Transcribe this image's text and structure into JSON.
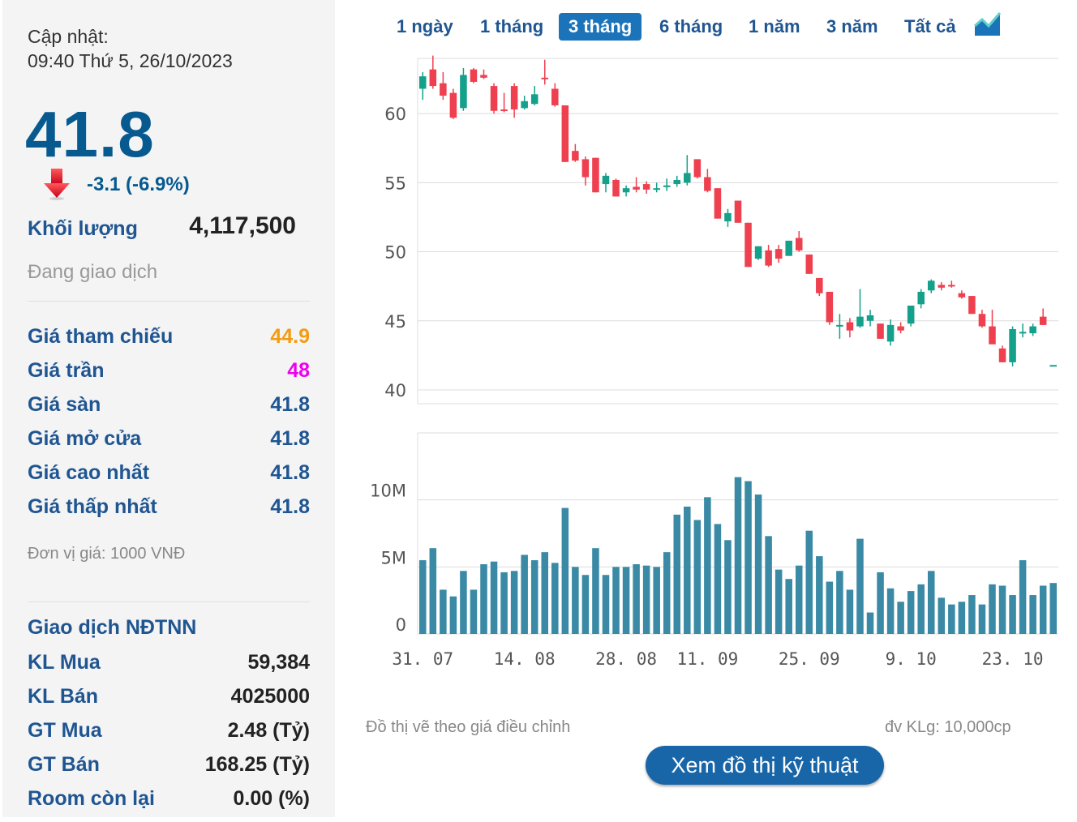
{
  "info": {
    "updated_label": "Cập nhật:",
    "updated_time": "09:40 Thứ 5, 26/10/2023",
    "price": "41.8",
    "change": "-3.1 (-6.9%)",
    "volume_label": "Khối lượng",
    "volume_value": "4,117,500",
    "status": "Đang giao dịch",
    "unit_note": "Đơn vị giá: 1000 VNĐ"
  },
  "prices": [
    {
      "label": "Giá tham chiếu",
      "value": "44.9",
      "color": "#f39c12"
    },
    {
      "label": "Giá trần",
      "value": "48",
      "color": "#ee00ee"
    },
    {
      "label": "Giá sàn",
      "value": "41.8",
      "color": "#1f5591"
    },
    {
      "label": "Giá mở cửa",
      "value": "41.8",
      "color": "#1f5591"
    },
    {
      "label": "Giá cao nhất",
      "value": "41.8",
      "color": "#1f5591"
    },
    {
      "label": "Giá thấp nhất",
      "value": "41.8",
      "color": "#1f5591"
    }
  ],
  "foreign": {
    "title": "Giao dịch NĐTNN",
    "rows": [
      {
        "label": "KL Mua",
        "value": "59,384"
      },
      {
        "label": "KL Bán",
        "value": "4025000"
      },
      {
        "label": "GT Mua",
        "value": "2.48 (Tỷ)"
      },
      {
        "label": "GT Bán",
        "value": "168.25 (Tỷ)"
      },
      {
        "label": "Room còn lại",
        "value": "0.00 (%)"
      }
    ]
  },
  "tabs": [
    "1 ngày",
    "1 tháng",
    "3 tháng",
    "6 tháng",
    "1 năm",
    "3 năm",
    "Tất cả"
  ],
  "active_tab": "3 tháng",
  "chart_note": "Đồ thị vẽ theo giá điều chỉnh",
  "volume_unit": "đv KLg: 10,000cp",
  "tech_button": "Xem đồ thị kỹ thuật",
  "colors": {
    "up": "#14a08a",
    "down": "#ef4050",
    "volume": "#3a8aa6",
    "accent": "#1b73b9"
  },
  "chart_data": {
    "type": "candlestick",
    "price_axis": {
      "ylim": [
        39,
        64
      ],
      "ticks": [
        40,
        45,
        50,
        55,
        60
      ]
    },
    "volume_axis": {
      "ylim": [
        0,
        15
      ],
      "ticks": [
        0,
        5,
        10
      ],
      "tick_labels": [
        "0",
        "5M",
        "10M"
      ]
    },
    "x_tick_labels": [
      {
        "i": 0,
        "label": "31. 07"
      },
      {
        "i": 10,
        "label": "14. 08"
      },
      {
        "i": 20,
        "label": "28. 08"
      },
      {
        "i": 28,
        "label": "11. 09"
      },
      {
        "i": 38,
        "label": "25. 09"
      },
      {
        "i": 48,
        "label": "9. 10"
      },
      {
        "i": 58,
        "label": "23. 10"
      }
    ],
    "candles": [
      {
        "o": 61.8,
        "h": 63.0,
        "l": 61.0,
        "c": 62.7,
        "v": 5.5
      },
      {
        "o": 63.2,
        "h": 64.2,
        "l": 61.8,
        "c": 62.0,
        "v": 6.4
      },
      {
        "o": 62.2,
        "h": 63.0,
        "l": 61.0,
        "c": 61.3,
        "v": 3.3
      },
      {
        "o": 61.5,
        "h": 61.8,
        "l": 59.6,
        "c": 59.7,
        "v": 2.8
      },
      {
        "o": 60.4,
        "h": 63.3,
        "l": 60.2,
        "c": 62.8,
        "v": 4.7
      },
      {
        "o": 63.2,
        "h": 63.3,
        "l": 62.2,
        "c": 62.3,
        "v": 3.3
      },
      {
        "o": 62.8,
        "h": 63.2,
        "l": 62.5,
        "c": 62.6,
        "v": 5.2
      },
      {
        "o": 62.0,
        "h": 62.2,
        "l": 60.0,
        "c": 60.2,
        "v": 5.4
      },
      {
        "o": 60.3,
        "h": 61.5,
        "l": 60.1,
        "c": 60.2,
        "v": 4.6
      },
      {
        "o": 62.0,
        "h": 62.2,
        "l": 59.7,
        "c": 60.3,
        "v": 4.7
      },
      {
        "o": 60.4,
        "h": 61.3,
        "l": 60.3,
        "c": 60.9,
        "v": 5.9
      },
      {
        "o": 60.7,
        "h": 62.0,
        "l": 60.6,
        "c": 61.4,
        "v": 5.5
      },
      {
        "o": 62.6,
        "h": 63.9,
        "l": 62.1,
        "c": 62.5,
        "v": 6.1
      },
      {
        "o": 61.8,
        "h": 62.2,
        "l": 60.5,
        "c": 60.6,
        "v": 5.3
      },
      {
        "o": 60.6,
        "h": 60.6,
        "l": 56.5,
        "c": 56.5,
        "v": 9.4
      },
      {
        "o": 57.3,
        "h": 57.8,
        "l": 56.5,
        "c": 56.6,
        "v": 5.0
      },
      {
        "o": 56.7,
        "h": 56.9,
        "l": 54.8,
        "c": 55.4,
        "v": 4.4
      },
      {
        "o": 56.8,
        "h": 56.8,
        "l": 54.3,
        "c": 54.3,
        "v": 6.4
      },
      {
        "o": 54.9,
        "h": 55.7,
        "l": 54.3,
        "c": 55.5,
        "v": 4.4
      },
      {
        "o": 55.2,
        "h": 55.3,
        "l": 54.0,
        "c": 54.0,
        "v": 5.0
      },
      {
        "o": 54.3,
        "h": 54.8,
        "l": 54.0,
        "c": 54.6,
        "v": 5.0
      },
      {
        "o": 54.7,
        "h": 55.4,
        "l": 54.3,
        "c": 54.5,
        "v": 5.2
      },
      {
        "o": 54.9,
        "h": 55.1,
        "l": 54.2,
        "c": 54.5,
        "v": 5.1
      },
      {
        "o": 54.6,
        "h": 55.0,
        "l": 54.3,
        "c": 54.6,
        "v": 5.0
      },
      {
        "o": 54.7,
        "h": 55.3,
        "l": 54.4,
        "c": 54.8,
        "v": 6.1
      },
      {
        "o": 54.9,
        "h": 55.5,
        "l": 54.7,
        "c": 55.2,
        "v": 8.9
      },
      {
        "o": 55.0,
        "h": 57.0,
        "l": 54.8,
        "c": 55.7,
        "v": 9.5
      },
      {
        "o": 56.7,
        "h": 56.7,
        "l": 55.3,
        "c": 55.4,
        "v": 8.5
      },
      {
        "o": 55.4,
        "h": 56.0,
        "l": 54.3,
        "c": 54.4,
        "v": 10.2
      },
      {
        "o": 54.6,
        "h": 54.6,
        "l": 52.4,
        "c": 52.4,
        "v": 8.2
      },
      {
        "o": 52.2,
        "h": 53.1,
        "l": 51.8,
        "c": 52.8,
        "v": 7.0
      },
      {
        "o": 53.7,
        "h": 53.7,
        "l": 52.1,
        "c": 52.1,
        "v": 11.7
      },
      {
        "o": 52.1,
        "h": 52.1,
        "l": 48.9,
        "c": 48.9,
        "v": 11.4
      },
      {
        "o": 49.5,
        "h": 50.4,
        "l": 49.4,
        "c": 50.4,
        "v": 10.4
      },
      {
        "o": 50.1,
        "h": 50.5,
        "l": 48.9,
        "c": 49.0,
        "v": 7.3
      },
      {
        "o": 50.2,
        "h": 50.5,
        "l": 49.2,
        "c": 49.5,
        "v": 4.8
      },
      {
        "o": 49.7,
        "h": 50.8,
        "l": 49.7,
        "c": 50.8,
        "v": 4.1
      },
      {
        "o": 51.0,
        "h": 51.5,
        "l": 50.0,
        "c": 50.1,
        "v": 5.1
      },
      {
        "o": 49.8,
        "h": 49.8,
        "l": 48.4,
        "c": 48.4,
        "v": 7.7
      },
      {
        "o": 48.1,
        "h": 48.1,
        "l": 46.8,
        "c": 47.0,
        "v": 5.8
      },
      {
        "o": 47.1,
        "h": 47.1,
        "l": 44.7,
        "c": 44.9,
        "v": 3.9
      },
      {
        "o": 44.6,
        "h": 45.5,
        "l": 43.7,
        "c": 44.7,
        "v": 4.7
      },
      {
        "o": 44.9,
        "h": 45.2,
        "l": 43.8,
        "c": 44.3,
        "v": 3.3
      },
      {
        "o": 44.6,
        "h": 47.3,
        "l": 44.5,
        "c": 45.3,
        "v": 7.1
      },
      {
        "o": 45.0,
        "h": 45.8,
        "l": 44.6,
        "c": 45.4,
        "v": 1.6
      },
      {
        "o": 44.8,
        "h": 44.8,
        "l": 43.7,
        "c": 43.7,
        "v": 4.6
      },
      {
        "o": 43.5,
        "h": 45.1,
        "l": 43.2,
        "c": 44.7,
        "v": 3.4
      },
      {
        "o": 44.6,
        "h": 44.9,
        "l": 44.1,
        "c": 44.3,
        "v": 2.4
      },
      {
        "o": 44.8,
        "h": 46.1,
        "l": 44.6,
        "c": 46.1,
        "v": 3.2
      },
      {
        "o": 46.2,
        "h": 47.3,
        "l": 45.9,
        "c": 47.1,
        "v": 3.7
      },
      {
        "o": 47.2,
        "h": 48.0,
        "l": 47.0,
        "c": 47.9,
        "v": 4.7
      },
      {
        "o": 47.6,
        "h": 47.8,
        "l": 47.2,
        "c": 47.4,
        "v": 2.7
      },
      {
        "o": 47.6,
        "h": 47.9,
        "l": 47.4,
        "c": 47.5,
        "v": 2.2
      },
      {
        "o": 47.0,
        "h": 47.2,
        "l": 46.6,
        "c": 46.7,
        "v": 2.4
      },
      {
        "o": 46.8,
        "h": 46.8,
        "l": 45.5,
        "c": 45.5,
        "v": 2.9
      },
      {
        "o": 45.5,
        "h": 45.8,
        "l": 44.5,
        "c": 44.6,
        "v": 2.2
      },
      {
        "o": 44.6,
        "h": 45.8,
        "l": 43.3,
        "c": 43.3,
        "v": 3.7
      },
      {
        "o": 43.0,
        "h": 43.2,
        "l": 42.0,
        "c": 42.0,
        "v": 3.6
      },
      {
        "o": 42.0,
        "h": 44.6,
        "l": 41.7,
        "c": 44.4,
        "v": 2.9
      },
      {
        "o": 44.2,
        "h": 44.8,
        "l": 43.8,
        "c": 44.2,
        "v": 5.5
      },
      {
        "o": 44.1,
        "h": 44.8,
        "l": 43.9,
        "c": 44.6,
        "v": 2.9
      },
      {
        "o": 45.3,
        "h": 45.9,
        "l": 44.7,
        "c": 44.7,
        "v": 3.6
      },
      {
        "o": 41.8,
        "h": 41.8,
        "l": 41.8,
        "c": 41.8,
        "v": 3.8
      }
    ]
  }
}
